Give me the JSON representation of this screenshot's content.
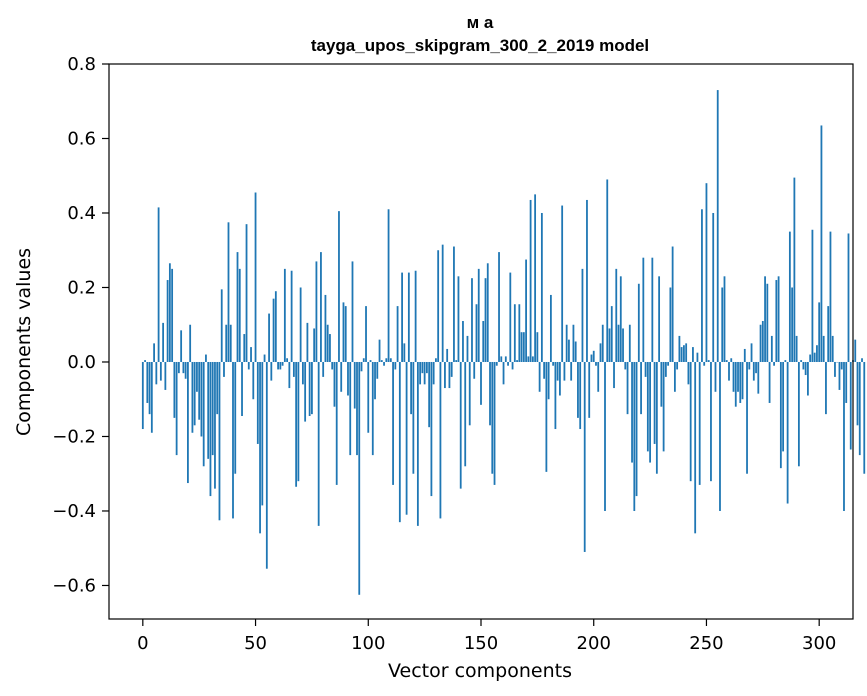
{
  "chart_data": {
    "type": "bar",
    "title": "м а",
    "subtitle": "tayga_upos_skipgram_300_2_2019 model",
    "xlabel": "Vector components",
    "ylabel": "Components values",
    "xlim": [
      -15,
      315
    ],
    "ylim": [
      -0.69,
      0.8
    ],
    "x_ticks": [
      0,
      50,
      100,
      150,
      200,
      250,
      300
    ],
    "y_ticks": [
      -0.6,
      -0.4,
      -0.2,
      0.0,
      0.2,
      0.4,
      0.6,
      0.8
    ],
    "y_tick_labels": [
      "−0.6",
      "−0.4",
      "−0.2",
      "0.0",
      "0.2",
      "0.4",
      "0.6",
      "0.8"
    ],
    "bar_color": "#1f77b4",
    "values": [
      -0.18,
      0.005,
      -0.11,
      -0.14,
      -0.19,
      0.05,
      -0.06,
      0.415,
      -0.05,
      0.105,
      -0.075,
      0.22,
      0.265,
      0.25,
      -0.15,
      -0.25,
      -0.03,
      0.085,
      -0.03,
      -0.045,
      -0.325,
      0.1,
      -0.19,
      -0.17,
      -0.08,
      -0.155,
      -0.2,
      -0.28,
      0.02,
      -0.26,
      -0.36,
      -0.25,
      -0.34,
      -0.14,
      -0.425,
      0.195,
      -0.04,
      0.1,
      0.375,
      0.1,
      -0.42,
      -0.3,
      0.295,
      0.25,
      -0.145,
      0.075,
      0.37,
      -0.02,
      0.04,
      -0.1,
      0.455,
      -0.22,
      -0.46,
      -0.385,
      0.02,
      -0.555,
      0.13,
      -0.05,
      0.17,
      0.19,
      -0.02,
      -0.02,
      -0.01,
      0.25,
      0.01,
      -0.07,
      0.245,
      -0.04,
      -0.335,
      -0.32,
      0.2,
      -0.06,
      -0.16,
      0.105,
      -0.145,
      -0.14,
      0.09,
      0.27,
      -0.44,
      0.295,
      -0.04,
      0.18,
      0.1,
      0.075,
      -0.02,
      -0.12,
      -0.33,
      0.405,
      -0.08,
      0.16,
      0.15,
      -0.09,
      -0.25,
      0.27,
      -0.125,
      -0.25,
      -0.625,
      -0.025,
      0.01,
      0.15,
      -0.19,
      0.005,
      -0.25,
      -0.1,
      -0.045,
      0.06,
      0.005,
      -0.01,
      0.01,
      0.41,
      0.01,
      -0.33,
      -0.02,
      0.15,
      -0.43,
      0.24,
      0.05,
      -0.41,
      0.24,
      -0.14,
      -0.3,
      0.245,
      -0.44,
      -0.06,
      -0.03,
      -0.06,
      -0.03,
      -0.175,
      -0.36,
      -0.06,
      0.01,
      0.3,
      -0.42,
      0.315,
      -0.07,
      0.035,
      -0.07,
      -0.04,
      0.31,
      0.005,
      0.23,
      -0.34,
      0.11,
      -0.28,
      0.07,
      -0.17,
      0.225,
      -0.045,
      0.155,
      0.25,
      -0.115,
      0.11,
      0.225,
      0.265,
      -0.17,
      -0.3,
      -0.33,
      -0.01,
      0.295,
      0.015,
      -0.06,
      0.015,
      -0.01,
      0.24,
      -0.02,
      0.155,
      0.005,
      0.155,
      0.08,
      0.08,
      0.275,
      0.015,
      0.435,
      0.015,
      0.45,
      0.08,
      -0.08,
      0.4,
      -0.045,
      -0.295,
      -0.1,
      0.18,
      -0.01,
      -0.18,
      -0.05,
      -0.09,
      0.42,
      -0.05,
      0.1,
      0.06,
      -0.05,
      0.1,
      0.055,
      -0.15,
      -0.18,
      0.25,
      -0.51,
      0.435,
      -0.15,
      0.02,
      0.03,
      -0.01,
      -0.08,
      0.05,
      0.1,
      -0.4,
      0.49,
      0.09,
      0.15,
      -0.07,
      0.25,
      0.1,
      0.23,
      0.09,
      -0.02,
      -0.14,
      0.1,
      -0.27,
      -0.4,
      -0.36,
      0.21,
      -0.14,
      0.28,
      -0.04,
      -0.24,
      -0.27,
      0.28,
      -0.22,
      -0.3,
      0.23,
      -0.12,
      -0.24,
      -0.04,
      -0.01,
      0.2,
      0.31,
      -0.08,
      -0.02,
      0.07,
      0.04,
      0.045,
      0.05,
      -0.06,
      -0.32,
      0.04,
      -0.46,
      0.025,
      -0.33,
      0.41,
      -0.01,
      0.48,
      0.005,
      -0.32,
      0.4,
      -0.08,
      0.73,
      -0.4,
      0.2,
      0.23,
      0.005,
      -0.05,
      0.01,
      -0.08,
      -0.12,
      -0.08,
      -0.11,
      -0.1,
      0.035,
      -0.3,
      -0.02,
      0.05,
      -0.05,
      -0.03,
      -0.085,
      0.1,
      0.11,
      0.23,
      0.21,
      -0.11,
      0.07,
      -0.01,
      0.22,
      0.23,
      -0.285,
      -0.24,
      0.005,
      -0.38,
      0.35,
      0.2,
      0.495,
      0.07,
      -0.28,
      0.005,
      -0.02,
      -0.035,
      -0.09,
      0.02,
      0.355,
      0.025,
      0.045,
      0.16,
      0.635,
      0.07,
      -0.14,
      0.15,
      0.35,
      0.07,
      -0.04,
      0.0,
      -0.075,
      -0.02,
      -0.4,
      -0.11,
      0.345,
      -0.235,
      0.005,
      0.06,
      -0.17,
      -0.25,
      0.01,
      -0.3
    ]
  }
}
